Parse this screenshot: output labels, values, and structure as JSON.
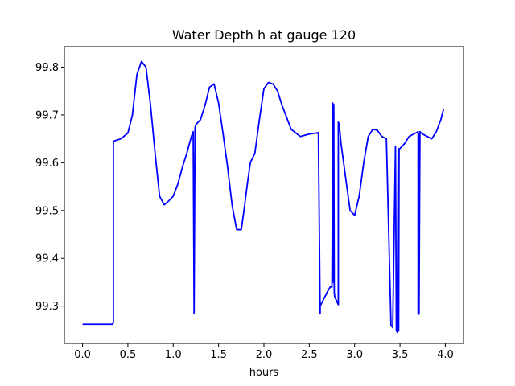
{
  "chart_data": {
    "type": "line",
    "title": "Water Depth h at gauge 120",
    "xlabel": "hours",
    "ylabel": "",
    "xlim": [
      -0.2,
      4.2
    ],
    "ylim": [
      99.222,
      99.843
    ],
    "xticks": [
      0.0,
      0.5,
      1.0,
      1.5,
      2.0,
      2.5,
      3.0,
      3.5,
      4.0
    ],
    "xtick_labels": [
      "0.0",
      "0.5",
      "1.0",
      "1.5",
      "2.0",
      "2.5",
      "3.0",
      "3.5",
      "4.0"
    ],
    "yticks": [
      99.3,
      99.4,
      99.5,
      99.6,
      99.7,
      99.8
    ],
    "ytick_labels": [
      "99.3",
      "99.4",
      "99.5",
      "99.6",
      "99.7",
      "99.8"
    ],
    "grid": false,
    "series": [
      {
        "color": "#0000ff",
        "x": [
          0.0,
          0.33,
          0.34,
          0.34,
          0.42,
          0.5,
          0.55,
          0.6,
          0.65,
          0.7,
          0.75,
          0.8,
          0.85,
          0.9,
          0.95,
          1.0,
          1.05,
          1.1,
          1.15,
          1.2,
          1.22,
          1.23,
          1.24,
          1.24,
          1.245,
          1.25,
          1.3,
          1.35,
          1.4,
          1.45,
          1.5,
          1.55,
          1.6,
          1.65,
          1.7,
          1.75,
          1.78,
          1.82,
          1.85,
          1.9,
          1.95,
          2.0,
          2.05,
          2.1,
          2.15,
          2.2,
          2.3,
          2.4,
          2.5,
          2.6,
          2.62,
          2.62,
          2.7,
          2.73,
          2.75,
          2.76,
          2.765,
          2.77,
          2.775,
          2.78,
          2.82,
          2.82,
          2.83,
          2.85,
          2.9,
          2.95,
          3.0,
          3.05,
          3.1,
          3.15,
          3.2,
          3.25,
          3.3,
          3.35,
          3.4,
          3.4,
          3.42,
          3.45,
          3.46,
          3.47,
          3.48,
          3.485,
          3.49,
          3.5,
          3.55,
          3.6,
          3.65,
          3.7,
          3.7,
          3.71,
          3.71,
          3.72,
          3.75,
          3.8,
          3.85,
          3.9,
          3.95,
          3.98
        ],
        "y": [
          99.262,
          99.262,
          99.265,
          99.645,
          99.65,
          99.662,
          99.7,
          99.785,
          99.812,
          99.8,
          99.72,
          99.62,
          99.53,
          99.512,
          99.52,
          99.53,
          99.555,
          99.59,
          99.62,
          99.655,
          99.665,
          99.285,
          99.668,
          99.673,
          99.677,
          99.68,
          99.69,
          99.72,
          99.758,
          99.765,
          99.725,
          99.66,
          99.59,
          99.51,
          99.46,
          99.46,
          99.5,
          99.56,
          99.6,
          99.62,
          99.69,
          99.755,
          99.768,
          99.765,
          99.75,
          99.72,
          99.67,
          99.655,
          99.66,
          99.663,
          99.284,
          99.3,
          99.33,
          99.34,
          99.34,
          99.725,
          99.35,
          99.722,
          99.33,
          99.32,
          99.303,
          99.685,
          99.68,
          99.64,
          99.57,
          99.5,
          99.49,
          99.53,
          99.6,
          99.655,
          99.67,
          99.668,
          99.655,
          99.65,
          99.268,
          99.26,
          99.255,
          99.635,
          99.25,
          99.245,
          99.63,
          99.248,
          99.628,
          99.63,
          99.64,
          99.655,
          99.66,
          99.665,
          99.283,
          99.66,
          99.283,
          99.665,
          99.66,
          99.655,
          99.65,
          99.665,
          99.69,
          99.712
        ]
      }
    ]
  }
}
